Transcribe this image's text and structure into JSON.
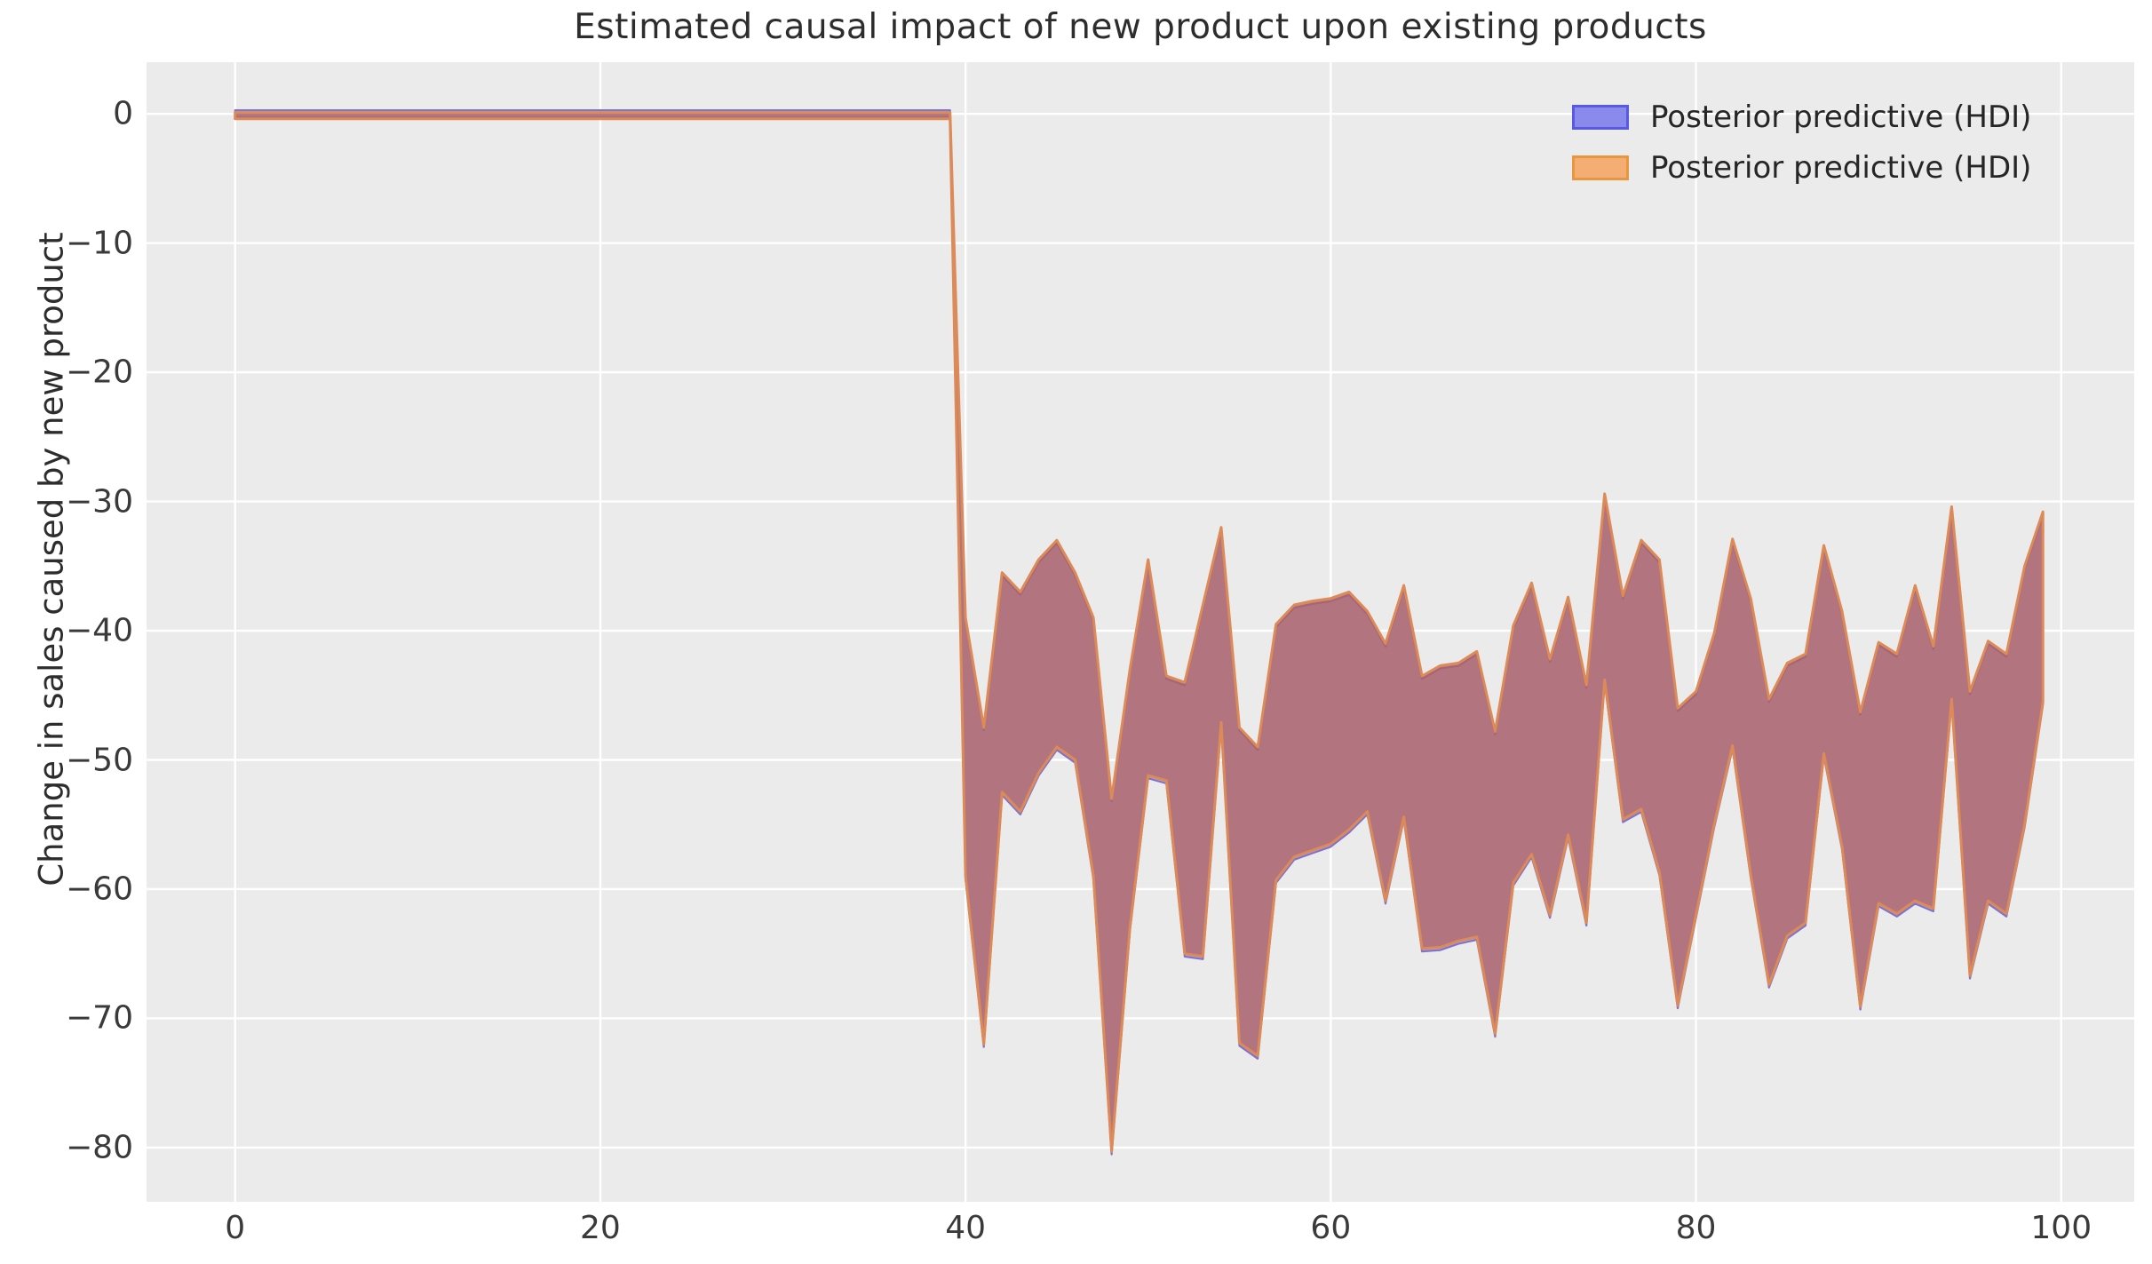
{
  "chart": {
    "title": "Estimated causal impact of new product upon existing products",
    "ylabel": "Change in sales caused by new product",
    "xlabel": ""
  },
  "legend": {
    "items": [
      {
        "label": "Posterior predictive (HDI)",
        "fill": "#8a8aec",
        "border": "#5a5ae0"
      },
      {
        "label": "Posterior predictive (HDI)",
        "fill": "#f4ad72",
        "border": "#e8963f"
      }
    ]
  },
  "style": {
    "figure_bg": "#ffffff",
    "plot_bg": "#ebebeb",
    "grid_color": "#ffffff",
    "band_fill": "rgba(178,95,89,0.72)",
    "band_edge": "#dc8a57",
    "blue_band_fill": "#b5aee2",
    "blue_band_edge": "#8172ca",
    "text_color": "#3a3a3a"
  },
  "chart_data": {
    "type": "area",
    "title": "Estimated causal impact of new product upon existing products",
    "xlabel": "",
    "ylabel": "Change in sales caused by new product",
    "xlim": [
      -4.85,
      104.0
    ],
    "ylim": [
      -84.2,
      4.0
    ],
    "x_ticks": [
      0,
      20,
      40,
      60,
      80,
      100
    ],
    "y_ticks": [
      0,
      -10,
      -20,
      -30,
      -40,
      -50,
      -60,
      -70,
      -80
    ],
    "grid": true,
    "legend_position": "upper right",
    "series_note": "Two overlapping HDI bands (blue and orange posterior predictive) that coincide; pre-period flat at 0 for x in [0,39], sharp drop at x=39-40, then jagged band x=40..99",
    "pre_period": {
      "x_start": 0,
      "x_end": 39.15,
      "value": 0
    },
    "x": [
      40,
      41,
      42,
      43,
      44,
      45,
      46,
      47,
      48,
      49,
      50,
      51,
      52,
      53,
      54,
      55,
      56,
      57,
      58,
      59,
      60,
      61,
      62,
      63,
      64,
      65,
      66,
      67,
      68,
      69,
      70,
      71,
      72,
      73,
      74,
      75,
      76,
      77,
      78,
      79,
      80,
      81,
      82,
      83,
      84,
      85,
      86,
      87,
      88,
      89,
      90,
      91,
      92,
      93,
      94,
      95,
      96,
      97,
      98,
      99
    ],
    "hdi_upper": [
      -39,
      -47.5,
      -35.5,
      -37,
      -34.5,
      -33,
      -35.5,
      -39,
      -53,
      -43,
      -34.5,
      -43.5,
      -44,
      -38,
      -32,
      -47.5,
      -49,
      -39.5,
      -38,
      -37.7,
      -37.5,
      -37,
      -38.5,
      -41,
      -36.5,
      -43.5,
      -42.7,
      -42.5,
      -41.6,
      -47.8,
      -39.6,
      -36.3,
      -42.2,
      -37.4,
      -44.2,
      -29.4,
      -37.3,
      -33,
      -34.5,
      -46,
      -44.7,
      -40.2,
      -32.9,
      -37.5,
      -45.3,
      -42.5,
      -41.8,
      -33.4,
      -38.5,
      -46.3,
      -40.9,
      -41.8,
      -36.5,
      -41.2,
      -30.4,
      -44.7,
      -40.8,
      -41.8,
      -35,
      -30.8
    ],
    "hdi_lower": [
      -59,
      -72,
      -52.5,
      -54,
      -51,
      -49,
      -50,
      -59,
      -80.3,
      -63,
      -51.2,
      -51.6,
      -65,
      -65.2,
      -47.1,
      -71.9,
      -72.9,
      -59.3,
      -57.5,
      -57,
      -56.5,
      -55.4,
      -54,
      -60.9,
      -54.4,
      -64.6,
      -64.5,
      -64,
      -63.7,
      -71.2,
      -59.5,
      -57.3,
      -62,
      -55.8,
      -62.6,
      -43.8,
      -54.6,
      -53.8,
      -58.7,
      -69,
      -62,
      -55,
      -48.9,
      -58.9,
      -67.4,
      -63.6,
      -62.6,
      -49.5,
      -56.7,
      -69.1,
      -61.1,
      -61.9,
      -60.9,
      -61.5,
      -45.3,
      -66.7,
      -60.9,
      -61.9,
      -55,
      -45.5
    ],
    "legend_entries": [
      "Posterior predictive (HDI)",
      "Posterior predictive (HDI)"
    ]
  }
}
